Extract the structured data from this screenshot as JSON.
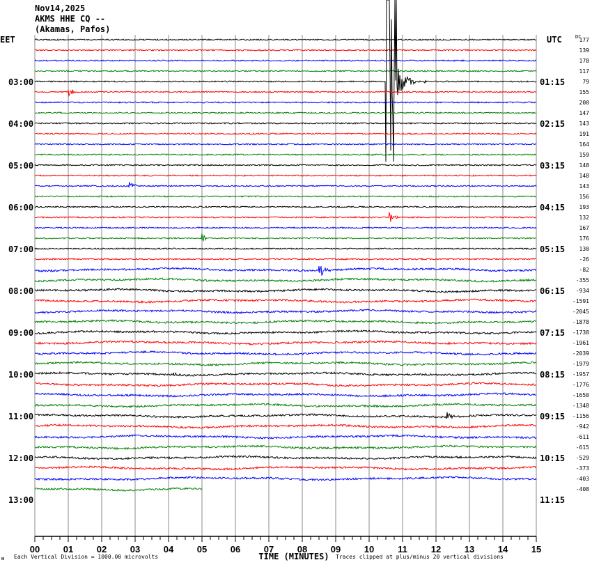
{
  "header": {
    "date": "Nov14,2025",
    "station": "AKMS HHE CQ --",
    "location": "(Akamas, Pafos)"
  },
  "chart_data": {
    "type": "line",
    "subtype": "helicorder",
    "left_timezone": "EET",
    "right_timezone": "UTC",
    "dc_label": "DC",
    "left_hour_labels": [
      "03:00",
      "04:00",
      "05:00",
      "06:00",
      "07:00",
      "08:00",
      "09:00",
      "10:00",
      "11:00",
      "12:00",
      "13:00"
    ],
    "right_hour_labels": [
      "01:15",
      "02:15",
      "03:15",
      "04:15",
      "05:15",
      "06:15",
      "07:15",
      "08:15",
      "09:15",
      "10:15",
      "11:15"
    ],
    "traces_per_hour": 4,
    "minutes_per_trace": 15,
    "dc_offsets": [
      177,
      139,
      178,
      117,
      79,
      155,
      200,
      147,
      143,
      191,
      164,
      159,
      148,
      148,
      143,
      156,
      193,
      132,
      167,
      176,
      130,
      -26,
      -82,
      -355,
      -934,
      -1591,
      -2045,
      -1878,
      -1738,
      -1961,
      -2039,
      -1979,
      -1957,
      -1776,
      -1650,
      -1348,
      -1156,
      -942,
      -611,
      -615,
      -529,
      -373,
      -403,
      -408
    ],
    "trace_colors": [
      "#000000",
      "#ff0000",
      "#0000ff",
      "#008000"
    ],
    "last_trace_end_minute": 5,
    "events": [
      {
        "trace": 4,
        "minute": 10.5,
        "amplitude": "clipped",
        "color": "#000000"
      },
      {
        "trace": 5,
        "minute": 1.0,
        "amplitude": 0.3
      },
      {
        "trace": 14,
        "minute": 2.8,
        "amplitude": 0.4
      },
      {
        "trace": 17,
        "minute": 10.6,
        "amplitude": 0.4
      },
      {
        "trace": 19,
        "minute": 5.0,
        "amplitude": 0.3
      },
      {
        "trace": 22,
        "minute": 8.5,
        "amplitude": 0.6
      },
      {
        "trace": 32,
        "minute": 4.1,
        "amplitude": 0.2
      },
      {
        "trace": 36,
        "minute": 12.3,
        "amplitude": 0.3
      }
    ],
    "x_ticks": [
      "00",
      "01",
      "02",
      "03",
      "04",
      "05",
      "06",
      "07",
      "08",
      "09",
      "10",
      "11",
      "12",
      "13",
      "14",
      "15"
    ],
    "xlabel": "TIME (MINUTES)",
    "xlim": [
      0,
      15
    ],
    "scale_note": "Each Vertical Division = 1000.00 microvolts",
    "clip_note": "Traces clipped at plus/minus 20 vertical divisions",
    "corner_mark": "ᴍ"
  }
}
